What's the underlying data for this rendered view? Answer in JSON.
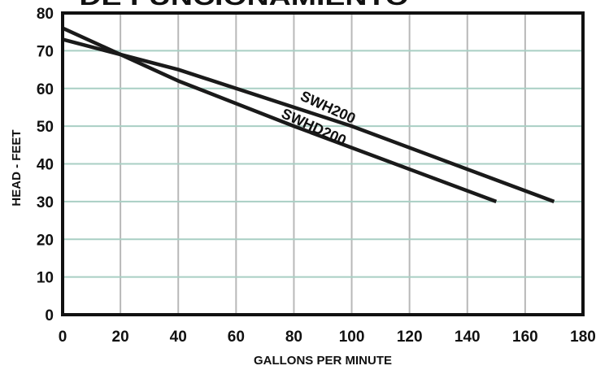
{
  "heading": "DE FUNCIONAMIENTO",
  "chart_data": {
    "type": "line",
    "xlabel": "GALLONS PER MINUTE",
    "ylabel": "HEAD - FEET",
    "xlim": [
      0,
      180
    ],
    "ylim": [
      0,
      80
    ],
    "xticks": [
      0,
      20,
      40,
      60,
      80,
      100,
      120,
      140,
      160,
      180
    ],
    "yticks": [
      0,
      10,
      20,
      30,
      40,
      50,
      60,
      70,
      80
    ],
    "grid": true,
    "colors": {
      "line": "#1a1a1a",
      "grid_vertical": "#b8b8b8",
      "grid_horizontal": "#a9cfc4",
      "frame": "#111111"
    },
    "series": [
      {
        "name": "SWH200",
        "x": [
          0,
          40,
          100,
          170
        ],
        "y": [
          73,
          65,
          50,
          30
        ]
      },
      {
        "name": "SWHD200",
        "x": [
          0,
          40,
          80,
          150
        ],
        "y": [
          76,
          62,
          50,
          30
        ]
      }
    ]
  }
}
